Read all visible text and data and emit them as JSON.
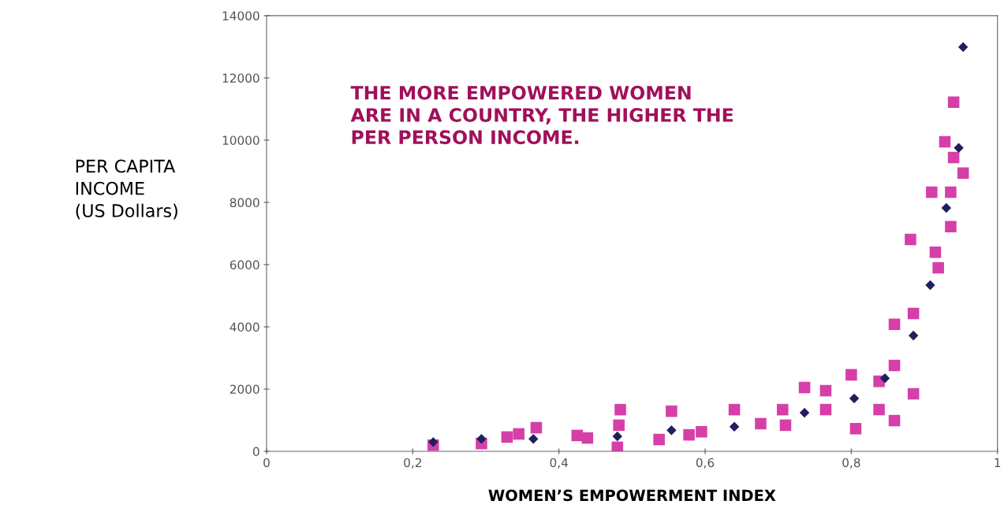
{
  "chart_data": {
    "type": "scatter",
    "xlabel": "WOMEN’S EMPOWERMENT INDEX",
    "ylabel": "PER CAPITA\nINCOME\n(US Dollars)",
    "annotations": [
      "THE MORE EMPOWERED WOMEN\nARE IN A COUNTRY, THE HIGHER THE\nPER PERSON INCOME."
    ],
    "xlim": [
      0,
      1
    ],
    "ylim": [
      0,
      14000
    ],
    "xticks": [
      0,
      {
        "value": 0.2,
        "label": "0,2"
      },
      {
        "value": 0.4,
        "label": "0,4"
      },
      {
        "value": 0.6,
        "label": "0,6"
      },
      {
        "value": 0.8,
        "label": "0,8"
      },
      1
    ],
    "yticks": [
      0,
      2000,
      4000,
      6000,
      8000,
      10000,
      12000,
      14000
    ],
    "grid": false,
    "series": [
      {
        "color": "#d63fa8",
        "marker": "square",
        "x": [
          0.228,
          0.294,
          0.329,
          0.345,
          0.369,
          0.425,
          0.439,
          0.48,
          0.482,
          0.484,
          0.537,
          0.554,
          0.578,
          0.595,
          0.64,
          0.676,
          0.71,
          0.706,
          0.736,
          0.765,
          0.765,
          0.806,
          0.859,
          0.838,
          0.8,
          0.885,
          0.838,
          0.859,
          0.859,
          0.885,
          0.919,
          0.915,
          0.881,
          0.936,
          0.936,
          0.91,
          0.953,
          0.94,
          0.928,
          0.94
        ],
        "values": [
          200,
          250,
          460,
          560,
          760,
          510,
          430,
          130,
          840,
          1340,
          380,
          1290,
          530,
          630,
          1340,
          890,
          840,
          1340,
          2050,
          1340,
          1950,
          730,
          990,
          1340,
          2460,
          1850,
          2250,
          2760,
          4080,
          4430,
          5900,
          6400,
          6810,
          7220,
          8330,
          8330,
          8940,
          9440,
          9950,
          11220
        ]
      },
      {
        "color": "#1f1f5e",
        "marker": "diamond",
        "x": [
          0.228,
          0.294,
          0.365,
          0.48,
          0.554,
          0.64,
          0.736,
          0.804,
          0.846,
          0.885,
          0.908,
          0.93,
          0.947,
          0.953
        ],
        "values": [
          300,
          400,
          400,
          480,
          680,
          790,
          1240,
          1700,
          2350,
          3720,
          5340,
          7820,
          9750,
          12990
        ]
      }
    ]
  }
}
